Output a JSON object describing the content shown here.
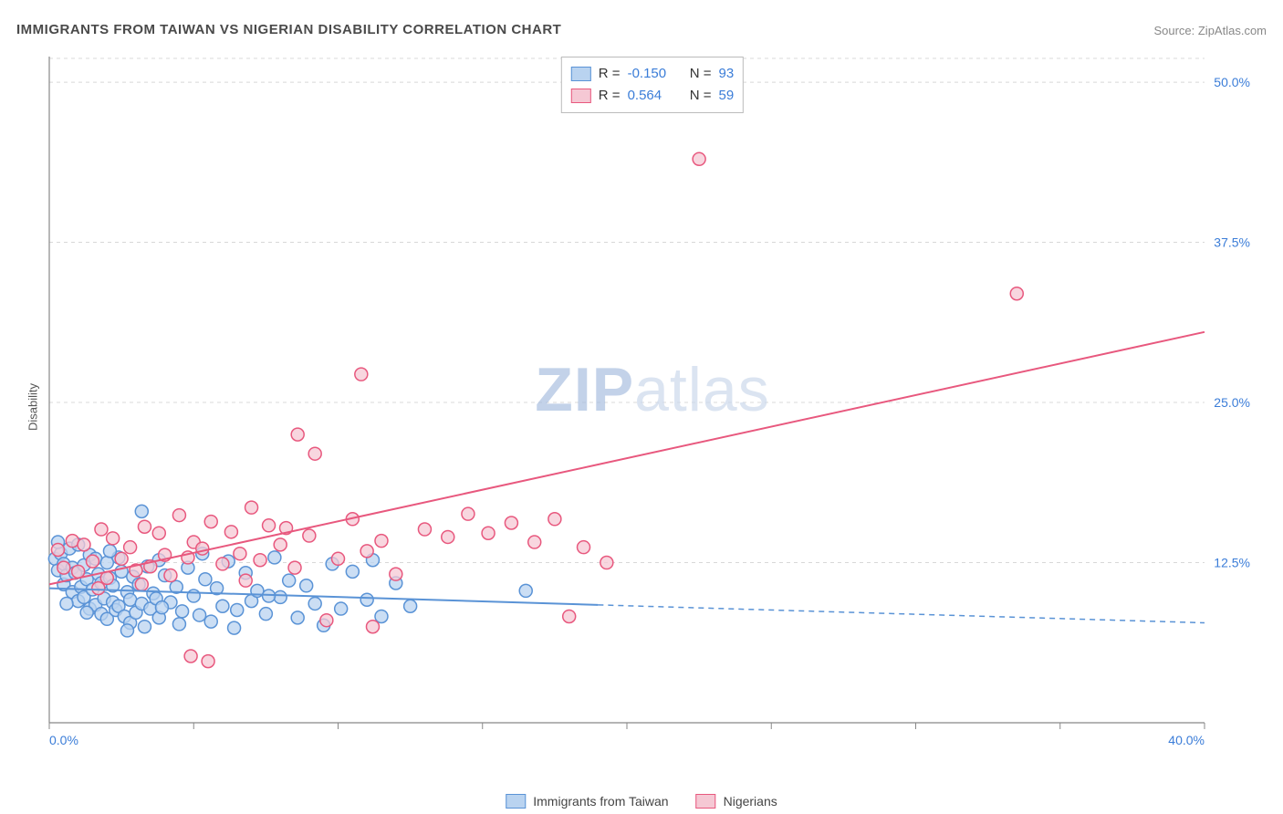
{
  "title": "IMMIGRANTS FROM TAIWAN VS NIGERIAN DISABILITY CORRELATION CHART",
  "source": "Source: ZipAtlas.com",
  "ylabel": "Disability",
  "watermark_a": "ZIP",
  "watermark_b": "atlas",
  "chart": {
    "type": "scatter",
    "xlim": [
      0,
      40
    ],
    "ylim": [
      0,
      52
    ],
    "x_ticks": [
      0,
      5,
      10,
      15,
      20,
      25,
      30,
      35,
      40
    ],
    "y_ticks_grid": [
      12.5,
      25,
      37.5,
      50
    ],
    "x_labels": [
      {
        "v": 0,
        "t": "0.0%"
      },
      {
        "v": 40,
        "t": "40.0%"
      }
    ],
    "y_labels": [
      {
        "v": 12.5,
        "t": "12.5%"
      },
      {
        "v": 25,
        "t": "25.0%"
      },
      {
        "v": 37.5,
        "t": "37.5%"
      },
      {
        "v": 50,
        "t": "50.0%"
      }
    ],
    "grid_color": "#d8d8d8",
    "axis_color": "#888",
    "background": "#ffffff",
    "marker_radius": 7,
    "series": [
      {
        "name": "Immigrants from Taiwan",
        "color_fill": "#b9d3f0",
        "color_stroke": "#5a93d6",
        "r": "-0.150",
        "n": "93",
        "trend": {
          "x1": 0,
          "y1": 10.5,
          "x2": 19,
          "y2": 9.2,
          "x2_ext": 40,
          "y2_ext": 7.8
        },
        "points": [
          [
            0.2,
            12.8
          ],
          [
            0.3,
            11.9
          ],
          [
            0.4,
            13.2
          ],
          [
            0.5,
            12.4
          ],
          [
            0.5,
            10.8
          ],
          [
            0.6,
            11.5
          ],
          [
            0.7,
            13.6
          ],
          [
            0.8,
            10.2
          ],
          [
            0.8,
            12.1
          ],
          [
            0.9,
            11.7
          ],
          [
            1.0,
            9.5
          ],
          [
            1.0,
            13.9
          ],
          [
            1.1,
            10.6
          ],
          [
            1.2,
            12.3
          ],
          [
            1.2,
            9.8
          ],
          [
            1.3,
            11.2
          ],
          [
            1.4,
            8.9
          ],
          [
            1.4,
            13.1
          ],
          [
            1.5,
            10.4
          ],
          [
            1.6,
            9.2
          ],
          [
            1.6,
            12.8
          ],
          [
            1.7,
            11.6
          ],
          [
            1.8,
            8.5
          ],
          [
            1.8,
            10.9
          ],
          [
            1.9,
            9.7
          ],
          [
            2.0,
            12.5
          ],
          [
            2.0,
            8.1
          ],
          [
            2.1,
            11.3
          ],
          [
            2.2,
            9.4
          ],
          [
            2.2,
            10.7
          ],
          [
            2.3,
            8.8
          ],
          [
            2.4,
            12.9
          ],
          [
            2.4,
            9.1
          ],
          [
            2.5,
            11.8
          ],
          [
            2.6,
            8.3
          ],
          [
            2.7,
            10.2
          ],
          [
            2.8,
            9.6
          ],
          [
            2.8,
            7.8
          ],
          [
            2.9,
            11.4
          ],
          [
            3.0,
            8.6
          ],
          [
            3.1,
            10.8
          ],
          [
            3.2,
            9.3
          ],
          [
            3.3,
            7.5
          ],
          [
            3.4,
            12.2
          ],
          [
            3.5,
            8.9
          ],
          [
            3.6,
            10.1
          ],
          [
            3.7,
            9.7
          ],
          [
            3.8,
            8.2
          ],
          [
            3.2,
            16.5
          ],
          [
            4.0,
            11.5
          ],
          [
            4.2,
            9.4
          ],
          [
            4.4,
            10.6
          ],
          [
            4.6,
            8.7
          ],
          [
            4.8,
            12.1
          ],
          [
            5.0,
            9.9
          ],
          [
            5.2,
            8.4
          ],
          [
            5.4,
            11.2
          ],
          [
            5.6,
            7.9
          ],
          [
            5.8,
            10.5
          ],
          [
            6.0,
            9.1
          ],
          [
            6.2,
            12.6
          ],
          [
            6.5,
            8.8
          ],
          [
            6.8,
            11.7
          ],
          [
            7.0,
            9.5
          ],
          [
            7.2,
            10.3
          ],
          [
            7.5,
            8.5
          ],
          [
            7.8,
            12.9
          ],
          [
            8.0,
            9.8
          ],
          [
            8.3,
            11.1
          ],
          [
            8.6,
            8.2
          ],
          [
            8.9,
            10.7
          ],
          [
            9.2,
            9.3
          ],
          [
            9.5,
            7.6
          ],
          [
            9.8,
            12.4
          ],
          [
            10.1,
            8.9
          ],
          [
            10.5,
            11.8
          ],
          [
            11.0,
            9.6
          ],
          [
            11.2,
            12.7
          ],
          [
            11.5,
            8.3
          ],
          [
            12.0,
            10.9
          ],
          [
            12.5,
            9.1
          ],
          [
            16.5,
            10.3
          ],
          [
            0.3,
            14.1
          ],
          [
            0.6,
            9.3
          ],
          [
            1.3,
            8.6
          ],
          [
            2.1,
            13.4
          ],
          [
            3.8,
            12.7
          ],
          [
            4.5,
            7.7
          ],
          [
            5.3,
            13.2
          ],
          [
            6.4,
            7.4
          ],
          [
            7.6,
            9.9
          ],
          [
            2.7,
            7.2
          ],
          [
            3.9,
            9.0
          ]
        ]
      },
      {
        "name": "Nigerians",
        "color_fill": "#f5c8d4",
        "color_stroke": "#e8587e",
        "r": "0.564",
        "n": "59",
        "trend": {
          "x1": 0,
          "y1": 10.8,
          "x2": 40,
          "y2": 30.5,
          "x2_ext": 40,
          "y2_ext": 30.5
        },
        "points": [
          [
            0.3,
            13.5
          ],
          [
            0.5,
            12.1
          ],
          [
            0.8,
            14.2
          ],
          [
            1.0,
            11.8
          ],
          [
            1.2,
            13.9
          ],
          [
            1.5,
            12.6
          ],
          [
            1.8,
            15.1
          ],
          [
            2.0,
            11.3
          ],
          [
            2.2,
            14.4
          ],
          [
            2.5,
            12.8
          ],
          [
            2.8,
            13.7
          ],
          [
            3.0,
            11.9
          ],
          [
            3.3,
            15.3
          ],
          [
            3.5,
            12.2
          ],
          [
            3.8,
            14.8
          ],
          [
            4.0,
            13.1
          ],
          [
            4.2,
            11.5
          ],
          [
            4.5,
            16.2
          ],
          [
            4.8,
            12.9
          ],
          [
            5.0,
            14.1
          ],
          [
            5.3,
            13.6
          ],
          [
            5.6,
            15.7
          ],
          [
            5.5,
            4.8
          ],
          [
            6.0,
            12.4
          ],
          [
            6.3,
            14.9
          ],
          [
            6.6,
            13.2
          ],
          [
            7.0,
            16.8
          ],
          [
            7.3,
            12.7
          ],
          [
            7.6,
            15.4
          ],
          [
            8.0,
            13.9
          ],
          [
            8.5,
            12.1
          ],
          [
            8.6,
            22.5
          ],
          [
            9.0,
            14.6
          ],
          [
            9.2,
            21.0
          ],
          [
            9.6,
            8.0
          ],
          [
            10.0,
            12.8
          ],
          [
            10.5,
            15.9
          ],
          [
            11.0,
            13.4
          ],
          [
            11.2,
            7.5
          ],
          [
            11.5,
            14.2
          ],
          [
            12.0,
            11.6
          ],
          [
            13.0,
            15.1
          ],
          [
            13.8,
            14.5
          ],
          [
            14.5,
            16.3
          ],
          [
            15.2,
            14.8
          ],
          [
            16.0,
            15.6
          ],
          [
            16.8,
            14.1
          ],
          [
            17.5,
            15.9
          ],
          [
            18.5,
            13.7
          ],
          [
            19.3,
            12.5
          ],
          [
            10.8,
            27.2
          ],
          [
            22.5,
            44.0
          ],
          [
            33.5,
            33.5
          ],
          [
            18.0,
            8.3
          ],
          [
            1.7,
            10.5
          ],
          [
            3.2,
            10.8
          ],
          [
            4.9,
            5.2
          ],
          [
            6.8,
            11.1
          ],
          [
            8.2,
            15.2
          ]
        ]
      }
    ]
  },
  "legend_bottom": [
    {
      "label": "Immigrants from Taiwan",
      "fill": "#b9d3f0",
      "stroke": "#5a93d6"
    },
    {
      "label": "Nigerians",
      "fill": "#f5c8d4",
      "stroke": "#e8587e"
    }
  ]
}
